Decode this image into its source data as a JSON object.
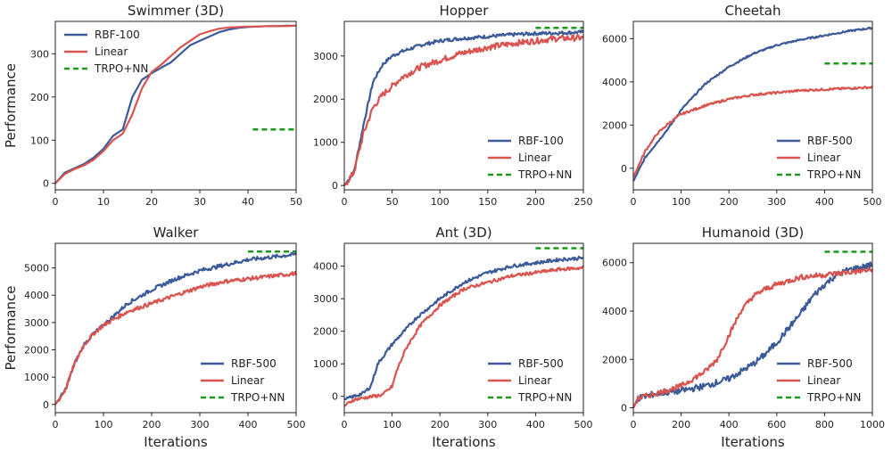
{
  "colors": {
    "rbf": "#3b5a97",
    "linear": "#d9534f",
    "trpo": "#1a9a1a",
    "frame": "#222222",
    "bg": "#ffffff"
  },
  "chart_data": [
    {
      "type": "line",
      "title": "Swimmer (3D)",
      "xlabel": "",
      "ylabel": "Performance",
      "xlim": [
        0,
        50
      ],
      "ylim": [
        -15,
        375
      ],
      "xticks": [
        0,
        10,
        20,
        30,
        40,
        50
      ],
      "yticks": [
        0,
        100,
        200,
        300
      ],
      "legend": "top-left",
      "grid": false,
      "series": [
        {
          "name": "RBF-100",
          "style": "rbf",
          "noise": 0,
          "x": [
            0,
            2,
            4,
            6,
            8,
            10,
            12,
            14,
            16,
            18,
            20,
            22,
            24,
            26,
            28,
            30,
            32,
            34,
            36,
            38,
            40,
            42,
            44,
            46,
            48,
            50
          ],
          "values": [
            0,
            25,
            35,
            45,
            60,
            80,
            110,
            125,
            200,
            240,
            255,
            268,
            280,
            300,
            320,
            330,
            340,
            350,
            356,
            360,
            362,
            363,
            364,
            364,
            365,
            365
          ]
        },
        {
          "name": "Linear",
          "style": "linear",
          "noise": 0,
          "x": [
            0,
            2,
            4,
            6,
            8,
            10,
            12,
            14,
            16,
            18,
            20,
            22,
            24,
            26,
            28,
            30,
            32,
            34,
            36,
            38,
            40,
            42,
            44,
            46,
            48,
            50
          ],
          "values": [
            0,
            22,
            33,
            42,
            55,
            75,
            100,
            115,
            160,
            220,
            258,
            275,
            295,
            315,
            330,
            345,
            352,
            358,
            361,
            362,
            363,
            363,
            364,
            364,
            364,
            365
          ]
        },
        {
          "name": "TRPO+NN",
          "style": "trpo",
          "noise": 0,
          "x": [
            41,
            50
          ],
          "values": [
            125,
            125
          ]
        }
      ]
    },
    {
      "type": "line",
      "title": "Hopper",
      "xlabel": "",
      "ylabel": "",
      "xlim": [
        0,
        250
      ],
      "ylim": [
        -100,
        3800
      ],
      "xticks": [
        0,
        50,
        100,
        150,
        200,
        250
      ],
      "yticks": [
        0,
        1000,
        2000,
        3000
      ],
      "legend": "bottom-right",
      "grid": false,
      "series": [
        {
          "name": "RBF-100",
          "style": "rbf",
          "noise": 40,
          "x": [
            0,
            10,
            20,
            30,
            40,
            50,
            60,
            80,
            100,
            120,
            150,
            180,
            200,
            220,
            250
          ],
          "values": [
            0,
            300,
            1400,
            2400,
            2800,
            3000,
            3100,
            3250,
            3350,
            3400,
            3450,
            3500,
            3520,
            3530,
            3550
          ]
        },
        {
          "name": "Linear",
          "style": "linear",
          "noise": 70,
          "x": [
            0,
            10,
            20,
            30,
            40,
            50,
            60,
            80,
            100,
            120,
            150,
            180,
            200,
            220,
            250
          ],
          "values": [
            0,
            300,
            1200,
            1800,
            2100,
            2300,
            2500,
            2750,
            2900,
            3050,
            3200,
            3300,
            3350,
            3400,
            3420
          ]
        },
        {
          "name": "TRPO+NN",
          "style": "trpo",
          "noise": 0,
          "x": [
            200,
            250
          ],
          "values": [
            3650,
            3650
          ]
        }
      ]
    },
    {
      "type": "line",
      "title": "Cheetah",
      "xlabel": "",
      "ylabel": "",
      "xlim": [
        0,
        500
      ],
      "ylim": [
        -1000,
        6800
      ],
      "xticks": [
        0,
        100,
        200,
        300,
        400,
        500
      ],
      "yticks": [
        0,
        2000,
        4000,
        6000
      ],
      "legend": "bottom-right",
      "grid": false,
      "series": [
        {
          "name": "RBF-500",
          "style": "rbf",
          "noise": 40,
          "x": [
            0,
            25,
            50,
            75,
            100,
            150,
            200,
            250,
            300,
            350,
            400,
            450,
            500
          ],
          "values": [
            -600,
            500,
            1200,
            1900,
            2700,
            3900,
            4700,
            5300,
            5700,
            5950,
            6150,
            6350,
            6500
          ]
        },
        {
          "name": "Linear",
          "style": "linear",
          "noise": 50,
          "x": [
            0,
            25,
            50,
            75,
            100,
            150,
            200,
            250,
            300,
            350,
            400,
            450,
            500
          ],
          "values": [
            -400,
            800,
            1600,
            2100,
            2500,
            2900,
            3200,
            3400,
            3500,
            3600,
            3650,
            3700,
            3750
          ]
        },
        {
          "name": "TRPO+NN",
          "style": "trpo",
          "noise": 0,
          "x": [
            400,
            500
          ],
          "values": [
            4850,
            4850
          ]
        }
      ]
    },
    {
      "type": "line",
      "title": "Walker",
      "xlabel": "Iterations",
      "ylabel": "Performance",
      "xlim": [
        0,
        500
      ],
      "ylim": [
        -300,
        5900
      ],
      "xticks": [
        0,
        100,
        200,
        300,
        400,
        500
      ],
      "yticks": [
        0,
        1000,
        2000,
        3000,
        4000,
        5000
      ],
      "legend": "bottom-right",
      "grid": false,
      "series": [
        {
          "name": "RBF-500",
          "style": "rbf",
          "noise": 70,
          "x": [
            0,
            20,
            40,
            60,
            80,
            100,
            150,
            200,
            250,
            300,
            350,
            400,
            450,
            500
          ],
          "values": [
            0,
            500,
            1500,
            2200,
            2600,
            2900,
            3700,
            4200,
            4600,
            4900,
            5100,
            5300,
            5400,
            5500
          ]
        },
        {
          "name": "Linear",
          "style": "linear",
          "noise": 70,
          "x": [
            0,
            20,
            40,
            60,
            80,
            100,
            150,
            200,
            250,
            300,
            350,
            400,
            450,
            500
          ],
          "values": [
            0,
            500,
            1500,
            2200,
            2600,
            2900,
            3400,
            3700,
            4000,
            4300,
            4500,
            4600,
            4700,
            4800
          ]
        },
        {
          "name": "TRPO+NN",
          "style": "trpo",
          "noise": 0,
          "x": [
            400,
            500
          ],
          "values": [
            5600,
            5600
          ]
        }
      ]
    },
    {
      "type": "line",
      "title": "Ant (3D)",
      "xlabel": "Iterations",
      "ylabel": "",
      "xlim": [
        0,
        500
      ],
      "ylim": [
        -500,
        4700
      ],
      "xticks": [
        0,
        100,
        200,
        300,
        400,
        500
      ],
      "yticks": [
        0,
        1000,
        2000,
        3000,
        4000
      ],
      "legend": "bottom-right",
      "grid": false,
      "series": [
        {
          "name": "RBF-500",
          "style": "rbf",
          "noise": 50,
          "x": [
            0,
            20,
            40,
            55,
            70,
            100,
            150,
            200,
            250,
            300,
            350,
            400,
            450,
            500
          ],
          "values": [
            -100,
            0,
            100,
            300,
            1000,
            1600,
            2400,
            3000,
            3500,
            3800,
            4000,
            4100,
            4200,
            4250
          ]
        },
        {
          "name": "Linear",
          "style": "linear",
          "noise": 50,
          "x": [
            0,
            20,
            40,
            60,
            80,
            100,
            110,
            130,
            160,
            200,
            250,
            300,
            350,
            400,
            450,
            500
          ],
          "values": [
            -300,
            -100,
            -50,
            0,
            50,
            300,
            800,
            1500,
            2200,
            2800,
            3300,
            3500,
            3700,
            3800,
            3900,
            3950
          ]
        },
        {
          "name": "TRPO+NN",
          "style": "trpo",
          "noise": 0,
          "x": [
            400,
            500
          ],
          "values": [
            4550,
            4550
          ]
        }
      ]
    },
    {
      "type": "line",
      "title": "Humanoid (3D)",
      "xlabel": "Iterations",
      "ylabel": "",
      "xlim": [
        0,
        1000
      ],
      "ylim": [
        -200,
        6800
      ],
      "xticks": [
        0,
        200,
        400,
        600,
        800,
        1000
      ],
      "yticks": [
        0,
        2000,
        4000,
        6000
      ],
      "legend": "bottom-right",
      "grid": false,
      "series": [
        {
          "name": "RBF-500",
          "style": "rbf",
          "noise": 130,
          "x": [
            0,
            20,
            100,
            200,
            300,
            400,
            500,
            550,
            600,
            650,
            700,
            750,
            800,
            850,
            900,
            950,
            1000
          ],
          "values": [
            0,
            400,
            600,
            700,
            900,
            1200,
            1800,
            2200,
            2700,
            3300,
            3900,
            4600,
            5100,
            5500,
            5700,
            5800,
            5900
          ]
        },
        {
          "name": "Linear",
          "style": "linear",
          "noise": 110,
          "x": [
            0,
            20,
            100,
            200,
            300,
            350,
            400,
            450,
            500,
            550,
            600,
            700,
            800,
            900,
            1000
          ],
          "values": [
            0,
            400,
            600,
            900,
            1500,
            2000,
            3000,
            4000,
            4600,
            4900,
            5100,
            5400,
            5500,
            5600,
            5700
          ]
        },
        {
          "name": "TRPO+NN",
          "style": "trpo",
          "noise": 0,
          "x": [
            800,
            1000
          ],
          "values": [
            6450,
            6450
          ]
        }
      ]
    }
  ]
}
